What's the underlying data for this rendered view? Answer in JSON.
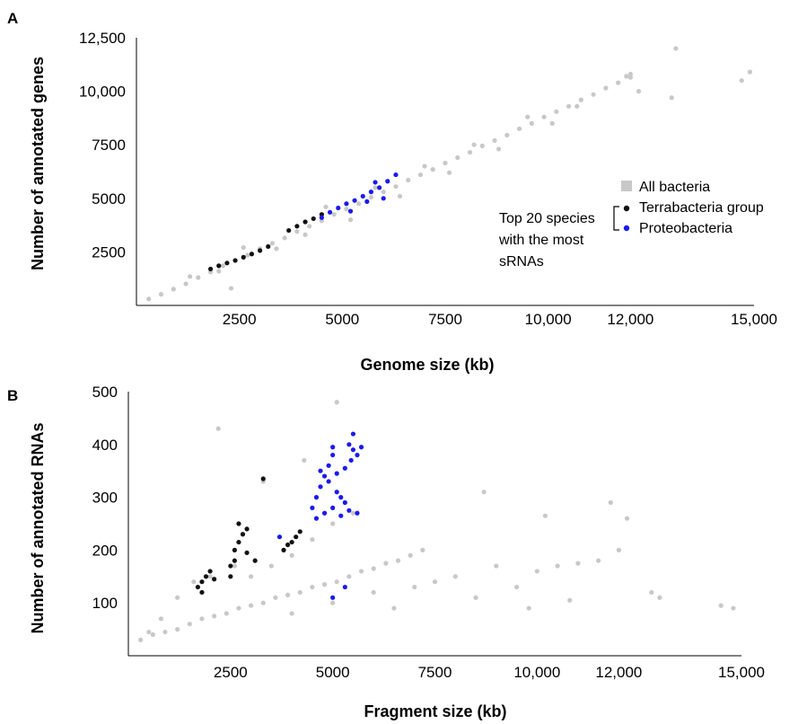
{
  "colors": {
    "all_bacteria": "#c8c8c8",
    "terrabacteria": "#111111",
    "proteobacteria": "#1a1aee"
  },
  "chart_data": [
    {
      "panel": "A",
      "type": "scatter",
      "xlabel": "Genome size (kb)",
      "ylabel": "Number of annotated genes",
      "xlim": [
        0,
        15000
      ],
      "ylim": [
        0,
        12500
      ],
      "x_ticks": [
        2500,
        5000,
        7500,
        10000,
        12000,
        15000
      ],
      "x_tick_labels": [
        "2500",
        "5000",
        "7500",
        "10,000",
        "12,000",
        "15,000"
      ],
      "y_ticks": [
        2500,
        5000,
        7500,
        10000,
        12500
      ],
      "y_tick_labels": [
        "2500",
        "5000",
        "7500",
        "10,000",
        "12,500"
      ],
      "legend": {
        "placement": "right",
        "entries": [
          "All bacteria",
          "Terrabacteria group",
          "Proteobacteria"
        ],
        "group_label_lines": [
          "Top 20 species",
          "with the most",
          "sRNAs"
        ]
      },
      "series": [
        {
          "name": "All bacteria",
          "color_key": "all_bacteria",
          "points": [
            [
              300,
              300
            ],
            [
              600,
              520
            ],
            [
              900,
              760
            ],
            [
              1200,
              1010
            ],
            [
              1500,
              1300
            ],
            [
              1800,
              1560
            ],
            [
              2100,
              1850
            ],
            [
              2400,
              2100
            ],
            [
              2700,
              2350
            ],
            [
              3000,
              2650
            ],
            [
              3300,
              2900
            ],
            [
              3600,
              3150
            ],
            [
              3900,
              3450
            ],
            [
              4200,
              3700
            ],
            [
              4500,
              3950
            ],
            [
              4800,
              4250
            ],
            [
              5100,
              4500
            ],
            [
              5400,
              4750
            ],
            [
              5700,
              5050
            ],
            [
              6000,
              5300
            ],
            [
              6300,
              5550
            ],
            [
              6600,
              5850
            ],
            [
              6900,
              6100
            ],
            [
              7200,
              6350
            ],
            [
              7500,
              6650
            ],
            [
              7800,
              6900
            ],
            [
              8100,
              7150
            ],
            [
              8400,
              7450
            ],
            [
              8700,
              7700
            ],
            [
              9000,
              7950
            ],
            [
              9300,
              8250
            ],
            [
              9600,
              8500
            ],
            [
              9900,
              8800
            ],
            [
              10200,
              9050
            ],
            [
              10500,
              9300
            ],
            [
              10800,
              9600
            ],
            [
              11100,
              9850
            ],
            [
              11400,
              10150
            ],
            [
              11700,
              10400
            ],
            [
              12000,
              10650
            ],
            [
              1300,
              1350
            ],
            [
              2000,
              1600
            ],
            [
              2600,
              2700
            ],
            [
              3400,
              2650
            ],
            [
              4100,
              3300
            ],
            [
              4600,
              4600
            ],
            [
              5200,
              4000
            ],
            [
              5800,
              5500
            ],
            [
              6400,
              5100
            ],
            [
              7000,
              6500
            ],
            [
              7600,
              6200
            ],
            [
              8200,
              7500
            ],
            [
              8800,
              7300
            ],
            [
              9500,
              8800
            ],
            [
              10100,
              8500
            ],
            [
              12200,
              10000
            ],
            [
              13000,
              9700
            ],
            [
              12000,
              10800
            ],
            [
              13100,
              12000
            ],
            [
              14700,
              10500
            ],
            [
              14900,
              10900
            ],
            [
              11900,
              10700
            ],
            [
              10700,
              9300
            ],
            [
              2300,
              800
            ]
          ]
        },
        {
          "name": "Terrabacteria group",
          "color_key": "terrabacteria",
          "points": [
            [
              1800,
              1700
            ],
            [
              2000,
              1850
            ],
            [
              2200,
              1980
            ],
            [
              2400,
              2100
            ],
            [
              2600,
              2250
            ],
            [
              2800,
              2400
            ],
            [
              3000,
              2560
            ],
            [
              3200,
              2750
            ],
            [
              3700,
              3500
            ],
            [
              3900,
              3700
            ],
            [
              4100,
              3900
            ],
            [
              4300,
              4050
            ],
            [
              4500,
              4250
            ]
          ]
        },
        {
          "name": "Proteobacteria",
          "color_key": "proteobacteria",
          "points": [
            [
              4500,
              4100
            ],
            [
              4700,
              4350
            ],
            [
              4900,
              4550
            ],
            [
              5100,
              4750
            ],
            [
              5300,
              4900
            ],
            [
              5500,
              5100
            ],
            [
              5700,
              5300
            ],
            [
              5900,
              5500
            ],
            [
              6100,
              5800
            ],
            [
              6300,
              6100
            ],
            [
              5200,
              4400
            ],
            [
              5600,
              4850
            ],
            [
              5800,
              5750
            ],
            [
              6000,
              5000
            ]
          ]
        }
      ]
    },
    {
      "panel": "B",
      "type": "scatter",
      "xlabel": "Fragment size (kb)",
      "ylabel": "Number of annotated RNAs",
      "xlim": [
        0,
        15000
      ],
      "ylim": [
        0,
        500
      ],
      "x_ticks": [
        2500,
        5000,
        7500,
        10000,
        12000,
        15000
      ],
      "x_tick_labels": [
        "2500",
        "5000",
        "7500",
        "10,000",
        "12,000",
        "15,000"
      ],
      "y_ticks": [
        100,
        200,
        300,
        400,
        500
      ],
      "y_tick_labels": [
        "100",
        "200",
        "300",
        "400",
        "500"
      ],
      "series": [
        {
          "name": "All bacteria",
          "color_key": "all_bacteria",
          "points": [
            [
              300,
              30
            ],
            [
              600,
              40
            ],
            [
              900,
              45
            ],
            [
              1200,
              50
            ],
            [
              1500,
              60
            ],
            [
              1800,
              70
            ],
            [
              2100,
              75
            ],
            [
              2400,
              80
            ],
            [
              2700,
              90
            ],
            [
              3000,
              95
            ],
            [
              3300,
              100
            ],
            [
              3600,
              110
            ],
            [
              3900,
              115
            ],
            [
              4200,
              120
            ],
            [
              4500,
              130
            ],
            [
              4800,
              135
            ],
            [
              5100,
              140
            ],
            [
              5400,
              150
            ],
            [
              5700,
              160
            ],
            [
              6000,
              165
            ],
            [
              6300,
              175
            ],
            [
              6600,
              180
            ],
            [
              6900,
              190
            ],
            [
              7200,
              200
            ],
            [
              3000,
              150
            ],
            [
              3500,
              170
            ],
            [
              4000,
              190
            ],
            [
              4500,
              220
            ],
            [
              5000,
              250
            ],
            [
              5500,
              270
            ],
            [
              4000,
              80
            ],
            [
              5000,
              100
            ],
            [
              6000,
              120
            ],
            [
              7000,
              130
            ],
            [
              8000,
              150
            ],
            [
              9000,
              170
            ],
            [
              8500,
              110
            ],
            [
              9500,
              130
            ],
            [
              10000,
              160
            ],
            [
              10500,
              170
            ],
            [
              11000,
              175
            ],
            [
              11500,
              180
            ],
            [
              12000,
              200
            ],
            [
              13000,
              110
            ],
            [
              14500,
              95
            ],
            [
              14800,
              90
            ],
            [
              11800,
              290
            ],
            [
              12200,
              260
            ],
            [
              10200,
              265
            ],
            [
              8700,
              310
            ],
            [
              2200,
              430
            ],
            [
              5100,
              480
            ],
            [
              4300,
              370
            ],
            [
              3300,
              330
            ],
            [
              1600,
              140
            ],
            [
              2000,
              150
            ],
            [
              2600,
              170
            ],
            [
              6500,
              90
            ],
            [
              7500,
              140
            ],
            [
              9800,
              90
            ],
            [
              10800,
              105
            ],
            [
              12800,
              120
            ],
            [
              1200,
              110
            ],
            [
              800,
              70
            ],
            [
              500,
              45
            ]
          ]
        },
        {
          "name": "Terrabacteria group",
          "color_key": "terrabacteria",
          "points": [
            [
              1700,
              130
            ],
            [
              1800,
              140
            ],
            [
              1900,
              150
            ],
            [
              2000,
              160
            ],
            [
              2100,
              145
            ],
            [
              1800,
              120
            ],
            [
              2500,
              170
            ],
            [
              2600,
              200
            ],
            [
              2700,
              215
            ],
            [
              2800,
              230
            ],
            [
              2900,
              240
            ],
            [
              2600,
              180
            ],
            [
              2700,
              250
            ],
            [
              2900,
              195
            ],
            [
              3800,
              200
            ],
            [
              3900,
              210
            ],
            [
              4000,
              215
            ],
            [
              4100,
              225
            ],
            [
              4200,
              235
            ],
            [
              3300,
              335
            ],
            [
              2500,
              150
            ],
            [
              3100,
              180
            ]
          ]
        },
        {
          "name": "Proteobacteria",
          "color_key": "proteobacteria",
          "points": [
            [
              4500,
              280
            ],
            [
              4600,
              300
            ],
            [
              4700,
              320
            ],
            [
              4800,
              340
            ],
            [
              4900,
              360
            ],
            [
              5000,
              380
            ],
            [
              5100,
              310
            ],
            [
              5200,
              300
            ],
            [
              5300,
              290
            ],
            [
              4600,
              260
            ],
            [
              4800,
              270
            ],
            [
              5000,
              280
            ],
            [
              5200,
              265
            ],
            [
              5400,
              275
            ],
            [
              5600,
              270
            ],
            [
              5400,
              400
            ],
            [
              5500,
              390
            ],
            [
              5600,
              380
            ],
            [
              5700,
              395
            ],
            [
              5500,
              420
            ],
            [
              5450,
              370
            ],
            [
              5000,
              395
            ],
            [
              4900,
              330
            ],
            [
              5100,
              345
            ],
            [
              5300,
              355
            ],
            [
              4700,
              350
            ],
            [
              3700,
              225
            ],
            [
              5000,
              110
            ],
            [
              5300,
              130
            ]
          ]
        }
      ]
    }
  ]
}
